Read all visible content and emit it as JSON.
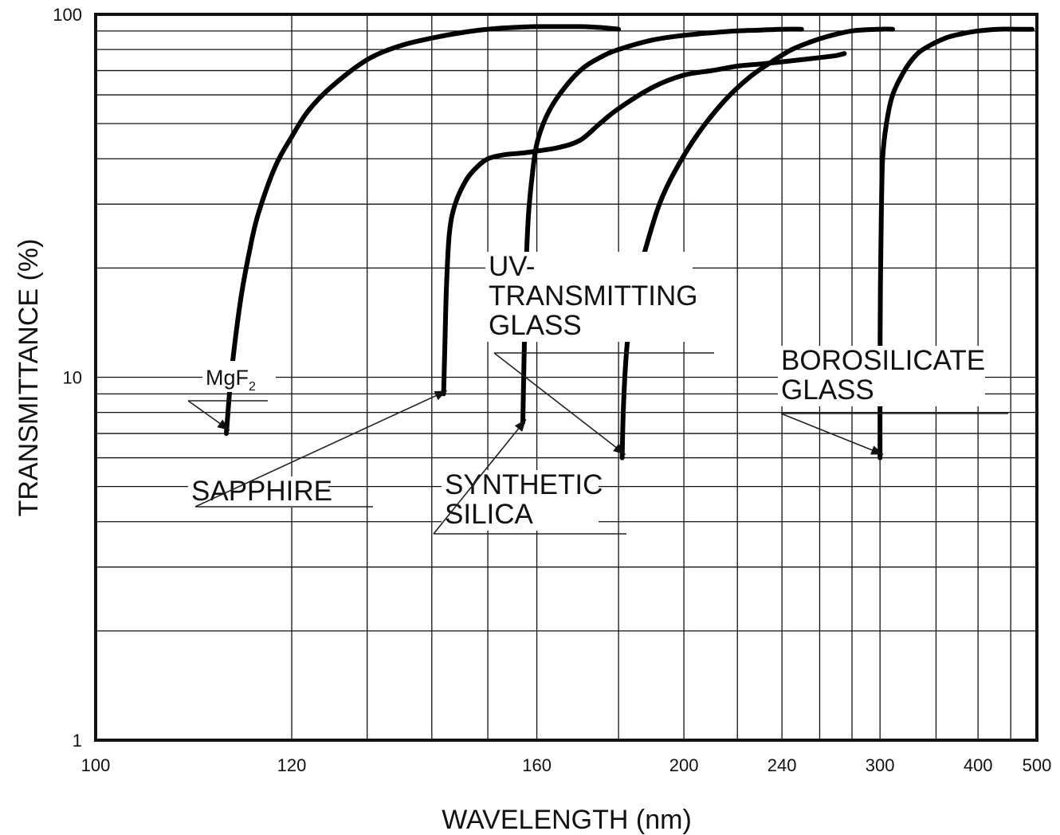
{
  "chart_data": {
    "type": "line",
    "title": "",
    "xlabel": "WAVELENGTH (nm)",
    "ylabel": "TRANSMITTANCE (%)",
    "x_scale": "reciprocal",
    "y_scale": "log",
    "xlim": [
      100,
      500
    ],
    "ylim": [
      1,
      100
    ],
    "grid": true,
    "x_ticks": [
      100,
      120,
      160,
      200,
      240,
      300,
      400,
      500
    ],
    "x_tick_labels": [
      "100",
      "120",
      "160",
      "200",
      "240",
      "300",
      "400",
      "500"
    ],
    "y_ticks": [
      1,
      10,
      100
    ],
    "y_tick_labels": [
      "1",
      "10",
      "100"
    ],
    "x_gridlines": [
      120,
      130,
      140,
      150,
      160,
      180,
      200,
      220,
      240,
      260,
      280,
      300,
      350,
      400,
      450
    ],
    "y_gridlines": [
      2,
      3,
      4,
      5,
      6,
      7,
      8,
      9,
      10,
      20,
      30,
      40,
      50,
      60,
      70,
      80,
      90
    ],
    "series": [
      {
        "name": "MgF2",
        "x": [
          112.5,
          113,
          114,
          115,
          116,
          118,
          120,
          122,
          125,
          130,
          135,
          140,
          145,
          150,
          155,
          160,
          165,
          170,
          175,
          180
        ],
        "y": [
          7,
          10,
          16,
          22,
          28,
          38,
          46,
          54,
          63,
          75,
          82,
          86,
          89,
          91,
          92,
          92.5,
          92.5,
          92.5,
          92,
          91
        ]
      },
      {
        "name": "SAPPHIRE",
        "x": [
          142,
          142.2,
          142.5,
          143,
          144,
          146,
          148,
          150,
          153,
          157,
          160,
          165,
          170,
          175,
          180,
          190,
          200,
          210,
          220,
          230,
          240,
          250,
          260,
          270,
          275
        ],
        "y": [
          9,
          12,
          18,
          25,
          30,
          35,
          38,
          40,
          41,
          41.5,
          42,
          43,
          45,
          50,
          55,
          63,
          68,
          70,
          72,
          73,
          74,
          75,
          76,
          77,
          78
        ]
      },
      {
        "name": "SYNTHETIC SILICA",
        "x": [
          157,
          157.3,
          157.7,
          158.2,
          159,
          160,
          162,
          165,
          170,
          175,
          180,
          190,
          200,
          210,
          220,
          230,
          240,
          250
        ],
        "y": [
          7.5,
          12,
          20,
          28,
          36,
          44,
          52,
          60,
          70,
          76,
          80,
          85,
          87.5,
          89,
          90,
          90.5,
          91,
          91
        ]
      },
      {
        "name": "UV-TRANSMITTING GLASS",
        "x": [
          181,
          181.3,
          182,
          183,
          185,
          188,
          192,
          197,
          205,
          215,
          225,
          235,
          245,
          255,
          265,
          280,
          300,
          310
        ],
        "y": [
          6,
          8,
          11,
          14,
          18,
          23,
          30,
          37,
          47,
          58,
          67,
          74,
          80,
          84,
          87,
          90,
          91,
          91
        ]
      },
      {
        "name": "BOROSILICATE GLASS",
        "x": [
          300,
          300,
          300.3,
          301,
          302,
          305,
          310,
          320,
          330,
          340,
          360,
          380,
          400,
          430,
          460,
          490
        ],
        "y": [
          6,
          10,
          18,
          28,
          40,
          50,
          60,
          70,
          77,
          81,
          86,
          88.5,
          90,
          91,
          91,
          91
        ]
      }
    ],
    "annotations": [
      {
        "series": "MgF2",
        "text": "MgF",
        "subscript": "2"
      },
      {
        "series": "SAPPHIRE",
        "lines": [
          "SAPPHIRE"
        ]
      },
      {
        "series": "SYNTHETIC SILICA",
        "lines": [
          "SYNTHETIC",
          "SILICA"
        ]
      },
      {
        "series": "UV-TRANSMITTING GLASS",
        "lines": [
          "UV-",
          "TRANSMITTING",
          "GLASS"
        ]
      },
      {
        "series": "BOROSILICATE GLASS",
        "lines": [
          "BOROSILICATE",
          "GLASS"
        ]
      }
    ]
  }
}
